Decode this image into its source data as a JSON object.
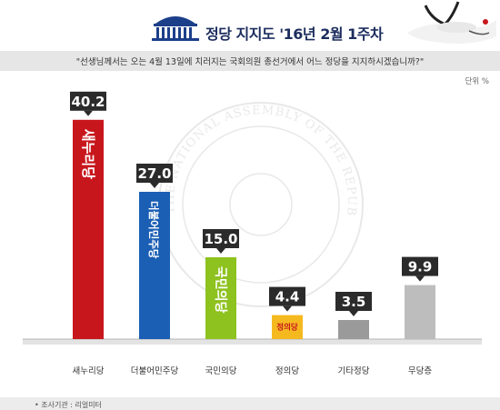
{
  "header": {
    "title": "정당 지지도 '16년 2월 1주차"
  },
  "question": "\"선생님께서는 오는 4월 13일에 치러지는 국회의원 총선거에서 어느 정당을 지지하시겠습니까?\"",
  "unit_label": "단위 %",
  "footer": "• 조사기관 : 리얼미터",
  "bar_party_names": [
    "새누리당",
    "더불어민주당",
    "국민의당",
    "정의당"
  ],
  "watermark": "THE NATIONAL ASSEMBLY OF THE REPUBLIC OF KOREA",
  "colors": {
    "saenuri": "#c8161d",
    "minjoo": "#1b5fb5",
    "people": "#8ec21f",
    "justice": "#f5b920",
    "other": "#9a9a9a",
    "none": "#bdbdbd",
    "title": "#1c2d5e",
    "callout": "#2b2b2b"
  },
  "chart_data": {
    "type": "bar",
    "title": "정당 지지도 '16년 2월 1주차",
    "categories": [
      "새누리당",
      "더불어민주당",
      "국민의당",
      "정의당",
      "기타정당",
      "무당층"
    ],
    "values": [
      40.2,
      27.0,
      15.0,
      4.4,
      3.5,
      9.9
    ],
    "data_labels": [
      "40.2",
      "27.0",
      "15.0",
      "4.4",
      "3.5",
      "9.9"
    ],
    "colors": [
      "#c8161d",
      "#1b5fb5",
      "#8ec21f",
      "#f5b920",
      "#9a9a9a",
      "#bdbdbd"
    ],
    "ylabel": "단위 %",
    "ylim": [
      0,
      42
    ],
    "grid": false,
    "legend": "none"
  }
}
